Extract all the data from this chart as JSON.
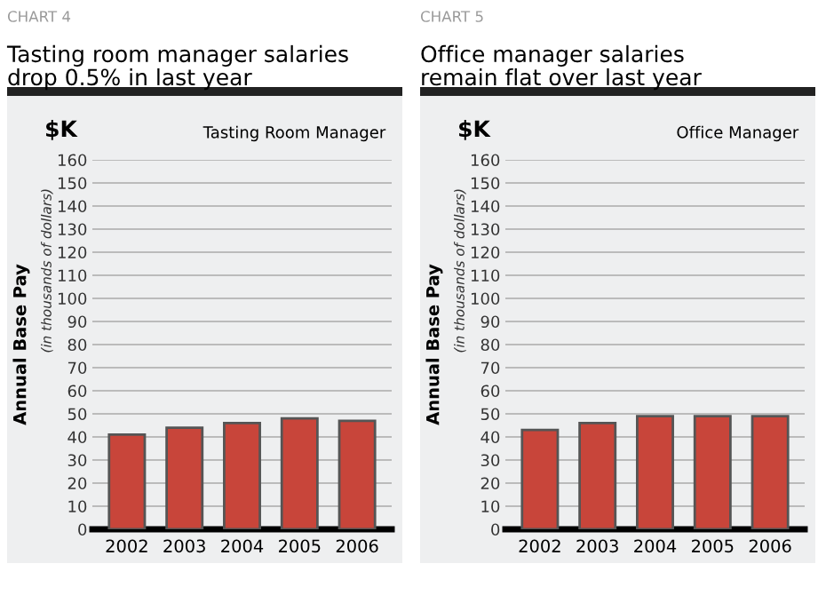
{
  "chart_data": [
    {
      "type": "bar",
      "title": "Tasting room manager salaries\ndrop 0.5% in last year",
      "ylabel": "Annual Base Pay",
      "annotations": [
        "CHART 4",
        "$K",
        "Tasting Room Manager",
        "(in thousands of dollars)"
      ],
      "categories": [
        "2002",
        "2003",
        "2004",
        "2005",
        "2006"
      ],
      "values": [
        41,
        44,
        46,
        48,
        47
      ],
      "color": "#c8453a",
      "ylim": [
        0,
        160
      ],
      "yticks": [
        0,
        10,
        20,
        30,
        40,
        50,
        60,
        70,
        80,
        90,
        100,
        110,
        120,
        130,
        140,
        150,
        160
      ],
      "grid": "y"
    },
    {
      "type": "bar",
      "title": "Office manager salaries\nremain flat over last year",
      "ylabel": "Annual Base Pay",
      "annotations": [
        "CHART 5",
        "$K",
        "Office Manager",
        "(in thousands of dollars)"
      ],
      "categories": [
        "2002",
        "2003",
        "2004",
        "2005",
        "2006"
      ],
      "values": [
        43,
        46,
        49,
        49,
        49
      ],
      "color": "#c8453a",
      "ylim": [
        0,
        160
      ],
      "yticks": [
        0,
        10,
        20,
        30,
        40,
        50,
        60,
        70,
        80,
        90,
        100,
        110,
        120,
        130,
        140,
        150,
        160
      ],
      "grid": "y"
    }
  ]
}
